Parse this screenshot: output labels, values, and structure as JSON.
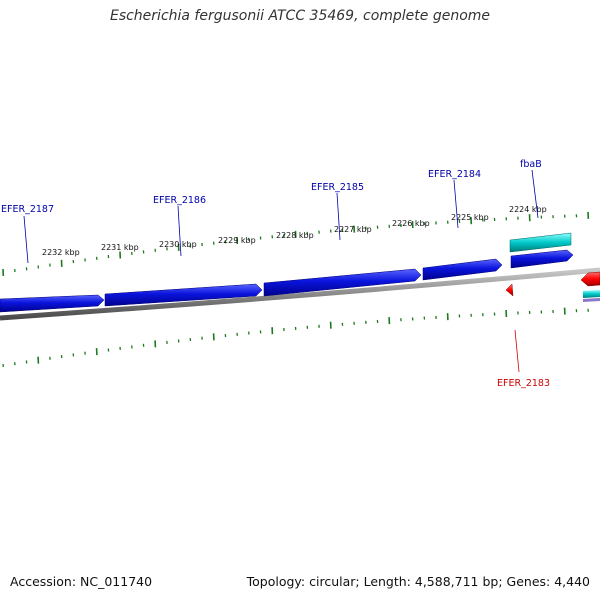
{
  "title": "Escherichia fergusonii ATCC 35469, complete genome",
  "footer": {
    "accession": "Accession: NC_011740",
    "summary": "Topology: circular; Length: 4,588,711 bp; Genes: 4,440"
  },
  "colors": {
    "forward_gene": "#0a14dc",
    "reverse_gene": "#ff0000",
    "rna_gene": "#00c8c8",
    "backbone": "#8a8a8a",
    "tick": "#1e7a1e",
    "forward_label": "#0000aa",
    "reverse_label": "#cc0000"
  },
  "scale_ticks": [
    {
      "label": "2232 kbp"
    },
    {
      "label": "2231 kbp"
    },
    {
      "label": "2230 kbp"
    },
    {
      "label": "2229 kbp"
    },
    {
      "label": "2228 kbp"
    },
    {
      "label": "2227 kbp"
    },
    {
      "label": "2226 kbp"
    },
    {
      "label": "2225 kbp"
    },
    {
      "label": "2224 kbp"
    }
  ],
  "genes": [
    {
      "label": "EFER_2187",
      "strand": "forward"
    },
    {
      "label": "EFER_2186",
      "strand": "forward"
    },
    {
      "label": "EFER_2185",
      "strand": "forward"
    },
    {
      "label": "EFER_2184",
      "strand": "forward"
    },
    {
      "label": "fbaB",
      "strand": "forward"
    },
    {
      "label": "EFER_2183",
      "strand": "reverse"
    }
  ]
}
